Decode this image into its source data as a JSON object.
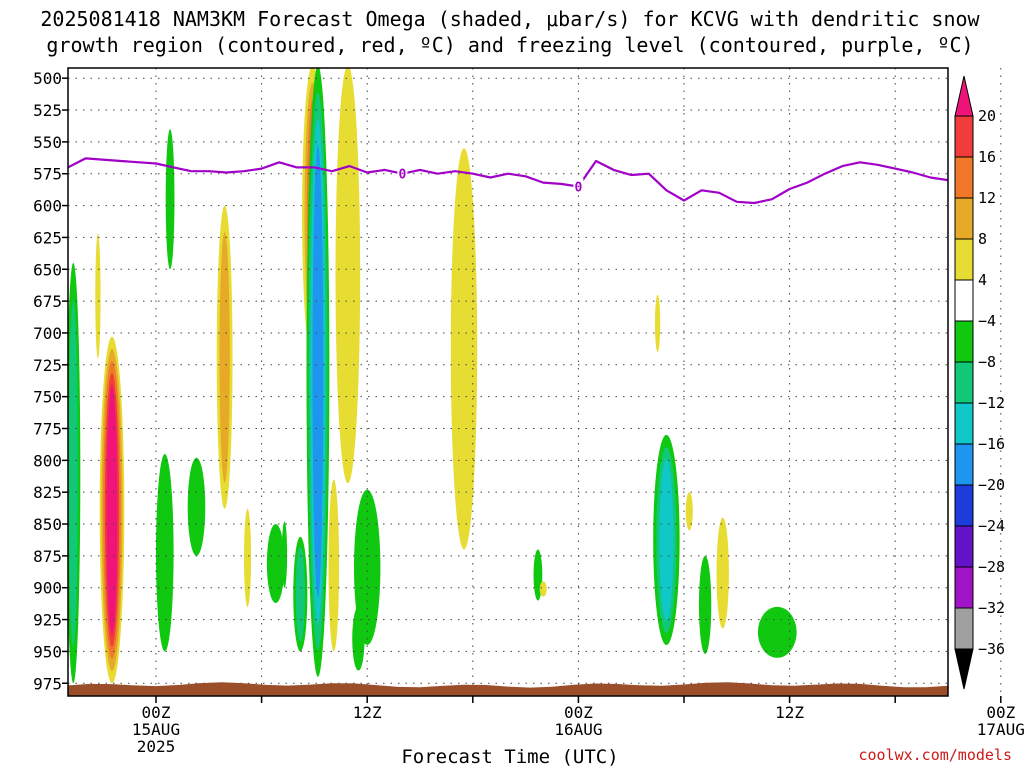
{
  "title": {
    "line1": "2025081418 NAM3KM Forecast Omega (shaded, μbar/s) for KCVG with dendritic snow",
    "line2": "growth region (contoured, red, ºC) and freezing level (contoured, purple, ºC)"
  },
  "credit": "coolwx.com/models",
  "chart_data": {
    "type": "heatmap",
    "xlabel": "Forecast Time (UTC)",
    "ylabel": "",
    "ylim": [
      985,
      492
    ],
    "y_scale": "pressure",
    "y_ticks": [
      500,
      525,
      550,
      575,
      600,
      625,
      650,
      675,
      700,
      725,
      750,
      775,
      800,
      825,
      850,
      875,
      900,
      925,
      950,
      975
    ],
    "xlim": [
      -5,
      45
    ],
    "x_ticks": [
      {
        "hour": 0,
        "lines": [
          "00Z",
          "15AUG",
          "2025"
        ]
      },
      {
        "hour": 6,
        "lines": []
      },
      {
        "hour": 12,
        "lines": [
          "12Z"
        ]
      },
      {
        "hour": 18,
        "lines": []
      },
      {
        "hour": 24,
        "lines": [
          "00Z",
          "16AUG"
        ]
      },
      {
        "hour": 30,
        "lines": []
      },
      {
        "hour": 36,
        "lines": [
          "12Z"
        ]
      },
      {
        "hour": 42,
        "lines": []
      },
      {
        "hour": 48,
        "lines": [
          "00Z",
          "17AUG"
        ]
      }
    ],
    "grid": true,
    "colorbar": {
      "levels": [
        "20",
        "16",
        "12",
        "8",
        "4",
        "−4",
        "−8",
        "−12",
        "−16",
        "−20",
        "−24",
        "−28",
        "−32",
        "−36"
      ],
      "colors": [
        "#f0147a",
        "#f03c3c",
        "#f07828",
        "#e6aa28",
        "#e6dc32",
        "#ffffff",
        "#10c810",
        "#10c878",
        "#10c8c8",
        "#1e96f0",
        "#1e3cdc",
        "#6414c8",
        "#a014c8",
        "#a0a0a0",
        "#000000"
      ]
    },
    "freezing_level": {
      "label": "0",
      "color": "#a000c8",
      "x": [
        -5,
        -4,
        -2,
        0,
        1,
        2,
        3,
        4,
        5,
        6,
        7,
        8,
        9,
        10,
        11,
        12,
        13,
        14,
        15,
        16,
        17,
        18,
        19,
        20,
        21,
        22,
        23,
        24,
        25,
        26,
        27,
        28,
        29,
        30,
        31,
        32,
        33,
        34,
        35,
        36,
        37,
        38,
        39,
        40,
        41,
        42,
        43,
        44,
        45
      ],
      "p": [
        570,
        563,
        565,
        567,
        570,
        573,
        573,
        574,
        573,
        571,
        566,
        570,
        570,
        573,
        569,
        574,
        572,
        575,
        572,
        575,
        573,
        575,
        578,
        575,
        577,
        582,
        583,
        585,
        565,
        572,
        576,
        575,
        588,
        596,
        588,
        590,
        597,
        598,
        595,
        587,
        582,
        575,
        569,
        566,
        568,
        571,
        574,
        578,
        580
      ]
    },
    "omega_regions": [
      {
        "x": -2.5,
        "p_top": 703,
        "p_bot": 975,
        "w": 1.4,
        "levels": [
          "4",
          "8",
          "12",
          "16",
          "20"
        ]
      },
      {
        "x": -4.7,
        "p_top": 645,
        "p_bot": 975,
        "w": 0.8,
        "levels": [
          "-4",
          "-8"
        ]
      },
      {
        "x": -3.3,
        "p_top": 622,
        "p_bot": 720,
        "w": 0.3,
        "levels": [
          "4"
        ]
      },
      {
        "x": 0.5,
        "p_top": 795,
        "p_bot": 950,
        "w": 1.0,
        "levels": [
          "-4"
        ]
      },
      {
        "x": 0.8,
        "p_top": 540,
        "p_bot": 650,
        "w": 0.5,
        "levels": [
          "-4"
        ]
      },
      {
        "x": 2.3,
        "p_top": 798,
        "p_bot": 875,
        "w": 1.0,
        "levels": [
          "-4"
        ]
      },
      {
        "x": 3.9,
        "p_top": 600,
        "p_bot": 838,
        "w": 0.9,
        "levels": [
          "4",
          "8"
        ]
      },
      {
        "x": 5.2,
        "p_top": 838,
        "p_bot": 915,
        "w": 0.4,
        "levels": [
          "4"
        ]
      },
      {
        "x": 6.8,
        "p_top": 850,
        "p_bot": 912,
        "w": 1.0,
        "levels": [
          "-4"
        ]
      },
      {
        "x": 7.3,
        "p_top": 848,
        "p_bot": 900,
        "w": 0.3,
        "levels": [
          "-4"
        ]
      },
      {
        "x": 8.2,
        "p_top": 860,
        "p_bot": 950,
        "w": 0.8,
        "levels": [
          "-4",
          "-8"
        ]
      },
      {
        "x": 8.9,
        "p_top": 490,
        "p_bot": 722,
        "w": 1.2,
        "levels": [
          "4",
          "8",
          "12"
        ]
      },
      {
        "x": 9.2,
        "p_top": 490,
        "p_bot": 970,
        "w": 1.3,
        "levels": [
          "-4",
          "-8",
          "-12",
          "-16"
        ]
      },
      {
        "x": 10.1,
        "p_top": 815,
        "p_bot": 950,
        "w": 0.6,
        "levels": [
          "4"
        ]
      },
      {
        "x": 10.9,
        "p_top": 490,
        "p_bot": 818,
        "w": 1.4,
        "levels": [
          "4"
        ]
      },
      {
        "x": 11.5,
        "p_top": 915,
        "p_bot": 965,
        "w": 0.7,
        "levels": [
          "-4"
        ]
      },
      {
        "x": 12.0,
        "p_top": 823,
        "p_bot": 945,
        "w": 1.5,
        "levels": [
          "-4"
        ]
      },
      {
        "x": 17.5,
        "p_top": 555,
        "p_bot": 870,
        "w": 1.5,
        "levels": [
          "4"
        ]
      },
      {
        "x": 21.7,
        "p_top": 870,
        "p_bot": 910,
        "w": 0.5,
        "levels": [
          "-4"
        ]
      },
      {
        "x": 22.0,
        "p_top": 895,
        "p_bot": 907,
        "w": 0.4,
        "levels": [
          "4"
        ]
      },
      {
        "x": 29.0,
        "p_top": 780,
        "p_bot": 945,
        "w": 1.5,
        "levels": [
          "-4",
          "-8",
          "-12"
        ]
      },
      {
        "x": 28.5,
        "p_top": 670,
        "p_bot": 715,
        "w": 0.3,
        "levels": [
          "4"
        ]
      },
      {
        "x": 30.3,
        "p_top": 825,
        "p_bot": 855,
        "w": 0.4,
        "levels": [
          "4"
        ]
      },
      {
        "x": 31.2,
        "p_top": 875,
        "p_bot": 952,
        "w": 0.7,
        "levels": [
          "-4"
        ]
      },
      {
        "x": 32.2,
        "p_top": 845,
        "p_bot": 932,
        "w": 0.7,
        "levels": [
          "4"
        ]
      },
      {
        "x": 35.3,
        "p_top": 915,
        "p_bot": 955,
        "w": 2.2,
        "levels": [
          "-4"
        ]
      }
    ]
  }
}
